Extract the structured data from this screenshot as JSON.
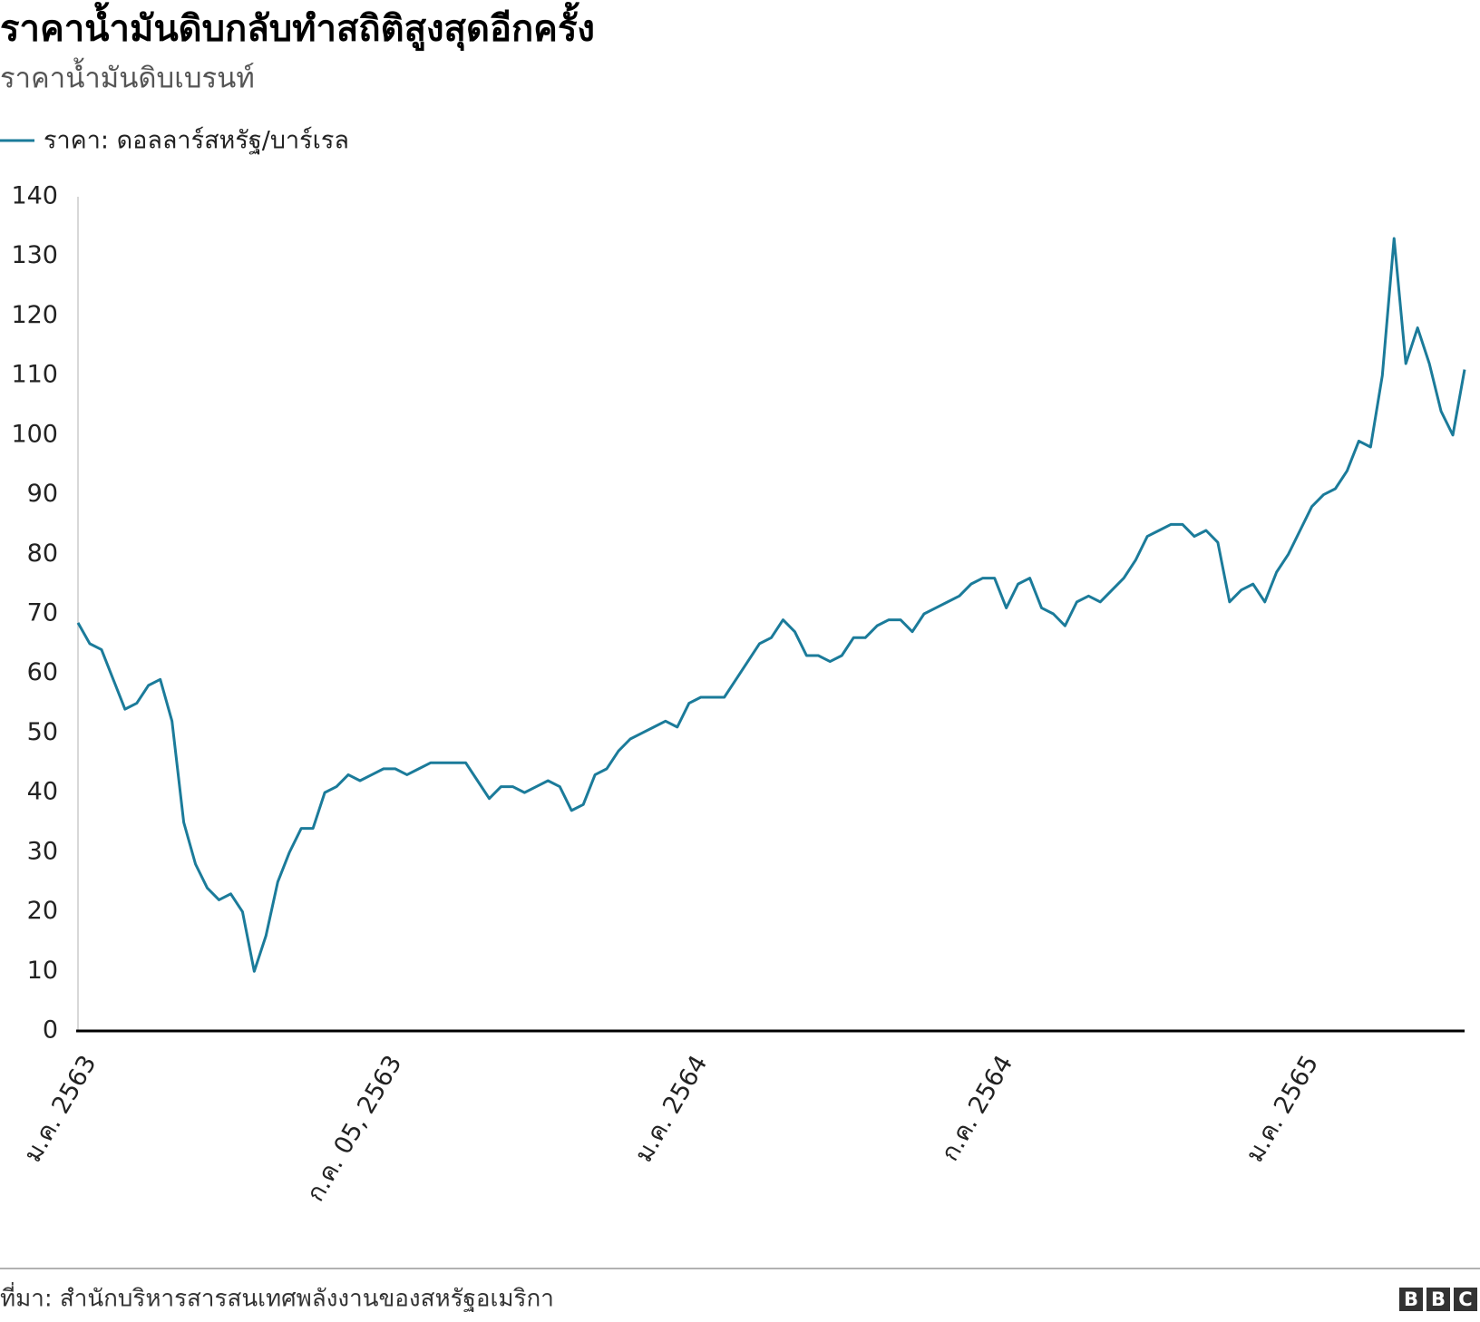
{
  "chart_data": {
    "type": "line",
    "title": "ราคาน้ำมันดิบกลับทำสถิติสูงสุดอีกครั้ง",
    "subtitle": "ราคาน้ำมันดิบเบรนท์",
    "source": "ที่มา: สำนักบริหารสารสนเทศพลังงานของสหรัฐอเมริกา",
    "logo": [
      "B",
      "B",
      "C"
    ],
    "categories": [
      "ม.ค. 2563",
      null,
      null,
      null,
      null,
      null,
      null,
      null,
      null,
      null,
      null,
      null,
      null,
      null,
      null,
      null,
      null,
      null,
      null,
      null,
      null,
      null,
      null,
      null,
      null,
      null,
      "ก.ค. 05, 2563",
      null,
      null,
      null,
      null,
      null,
      null,
      null,
      null,
      null,
      null,
      null,
      null,
      null,
      null,
      null,
      null,
      null,
      null,
      null,
      null,
      null,
      null,
      null,
      null,
      null,
      "ม.ค. 2564",
      null,
      null,
      null,
      null,
      null,
      null,
      null,
      null,
      null,
      null,
      null,
      null,
      null,
      null,
      null,
      null,
      null,
      null,
      null,
      null,
      null,
      null,
      null,
      null,
      null,
      "ก.ค. 2564",
      null,
      null,
      null,
      null,
      null,
      null,
      null,
      null,
      null,
      null,
      null,
      null,
      null,
      null,
      null,
      null,
      null,
      null,
      null,
      null,
      null,
      null,
      null,
      null,
      null,
      "ม.ค. 2565",
      null,
      null,
      null,
      null,
      null,
      null,
      null,
      null,
      null,
      null,
      null,
      null,
      null,
      null
    ],
    "series": [
      {
        "name": "ราคา: ดอลลาร์สหรัฐ/บาร์เรล",
        "color": "#1b7b9a",
        "values": [
          68.5,
          65,
          64,
          59,
          54,
          55,
          58,
          59,
          52,
          35,
          28,
          24,
          22,
          23,
          20,
          10,
          16,
          25,
          30,
          34,
          34,
          40,
          41,
          43,
          42,
          43,
          44,
          44,
          43,
          44,
          45,
          45,
          45,
          45,
          42,
          39,
          41,
          41,
          40,
          41,
          42,
          41,
          37,
          38,
          43,
          44,
          47,
          49,
          50,
          51,
          52,
          51,
          55,
          56,
          56,
          56,
          59,
          62,
          65,
          66,
          69,
          67,
          63,
          63,
          62,
          63,
          66,
          66,
          68,
          69,
          69,
          67,
          70,
          71,
          72,
          73,
          75,
          76,
          76,
          71,
          75,
          76,
          71,
          70,
          68,
          72,
          73,
          72,
          74,
          76,
          79,
          83,
          84,
          85,
          85,
          83,
          84,
          82,
          72,
          74,
          75,
          72,
          77,
          80,
          84,
          88,
          90,
          91,
          94,
          99,
          98,
          110,
          133,
          112,
          118,
          112,
          104,
          100,
          111
        ]
      }
    ],
    "ylim": [
      0,
      140
    ],
    "yticks": [
      0,
      10,
      20,
      30,
      40,
      50,
      60,
      70,
      80,
      90,
      100,
      110,
      120,
      130,
      140
    ],
    "grid": false
  }
}
